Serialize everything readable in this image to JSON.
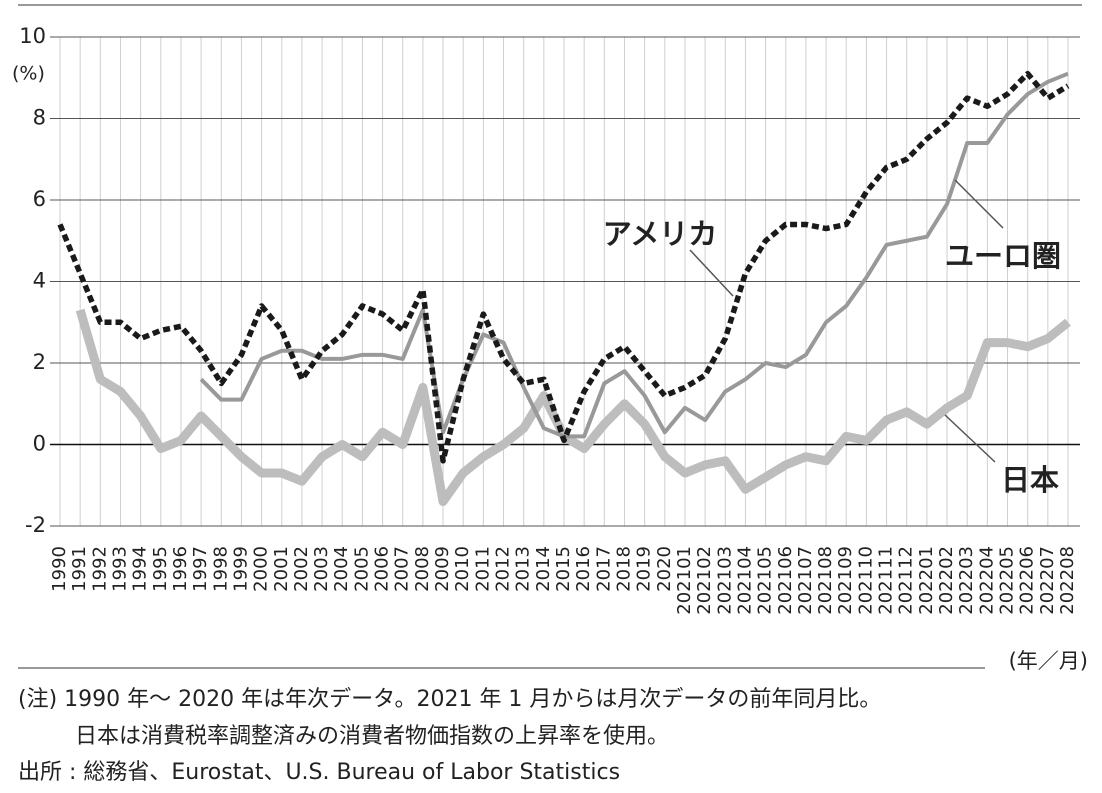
{
  "chart_data": {
    "type": "line",
    "unit_label": "(%)",
    "x_unit_label": "(年／月)",
    "categories": [
      "1990",
      "1991",
      "1992",
      "1993",
      "1994",
      "1995",
      "1996",
      "1997",
      "1998",
      "1999",
      "2000",
      "2001",
      "2002",
      "2003",
      "2004",
      "2005",
      "2006",
      "2007",
      "2008",
      "2009",
      "2010",
      "2011",
      "2012",
      "2013",
      "2014",
      "2015",
      "2016",
      "2017",
      "2018",
      "2019",
      "2020",
      "202101",
      "202102",
      "202103",
      "202104",
      "202105",
      "202106",
      "202107",
      "202108",
      "202109",
      "202110",
      "202111",
      "202112",
      "202201",
      "202202",
      "202203",
      "202204",
      "202205",
      "202206",
      "202207",
      "202208"
    ],
    "series": [
      {
        "name": "日本",
        "color": "#bdbdbd",
        "values": [
          null,
          3.3,
          1.6,
          1.3,
          0.7,
          -0.1,
          0.1,
          0.7,
          0.2,
          -0.3,
          -0.7,
          -0.7,
          -0.9,
          -0.3,
          0.0,
          -0.3,
          0.3,
          0.0,
          1.4,
          -1.4,
          -0.7,
          -0.3,
          0.0,
          0.4,
          1.2,
          0.2,
          -0.1,
          0.5,
          1.0,
          0.5,
          -0.3,
          -0.7,
          -0.5,
          -0.4,
          -1.1,
          -0.8,
          -0.5,
          -0.3,
          -0.4,
          0.2,
          0.1,
          0.6,
          0.8,
          0.5,
          0.9,
          1.2,
          2.5,
          2.5,
          2.4,
          2.6,
          3.0
        ]
      },
      {
        "name": "ユーロ圏",
        "color": "#999999",
        "values": [
          null,
          null,
          null,
          null,
          null,
          null,
          null,
          1.6,
          1.1,
          1.1,
          2.1,
          2.3,
          2.3,
          2.1,
          2.1,
          2.2,
          2.2,
          2.1,
          3.3,
          0.3,
          1.6,
          2.7,
          2.5,
          1.4,
          0.4,
          0.2,
          0.2,
          1.5,
          1.8,
          1.2,
          0.3,
          0.9,
          0.6,
          1.3,
          1.6,
          2.0,
          1.9,
          2.2,
          3.0,
          3.4,
          4.1,
          4.9,
          5.0,
          5.1,
          5.9,
          7.4,
          7.4,
          8.1,
          8.6,
          8.9,
          9.1
        ]
      },
      {
        "name": "アメリカ",
        "color": "#1a1a1a",
        "values": [
          5.4,
          4.2,
          3.0,
          3.0,
          2.6,
          2.8,
          2.9,
          2.3,
          1.5,
          2.2,
          3.4,
          2.8,
          1.6,
          2.3,
          2.7,
          3.4,
          3.2,
          2.8,
          3.8,
          -0.4,
          1.6,
          3.2,
          2.1,
          1.5,
          1.6,
          0.1,
          1.3,
          2.1,
          2.4,
          1.8,
          1.2,
          1.4,
          1.7,
          2.6,
          4.2,
          5.0,
          5.4,
          5.4,
          5.3,
          5.4,
          6.2,
          6.8,
          7.0,
          7.5,
          7.9,
          8.5,
          8.3,
          8.6,
          9.1,
          8.5,
          8.8
        ]
      }
    ],
    "ylim": [
      -2,
      10
    ],
    "yticks": [
      -2,
      0,
      2,
      4,
      6,
      8,
      10
    ],
    "grid": true,
    "notes": [
      "(注) 1990 年〜 2020 年は年次データ。2021 年 1 月からは月次データの前年同月比。",
      "日本は消費税率調整済みの消費者物価指数の上昇率を使用。",
      "出所 : 総務省、Eurostat、U.S. Bureau of Labor Statistics"
    ]
  }
}
